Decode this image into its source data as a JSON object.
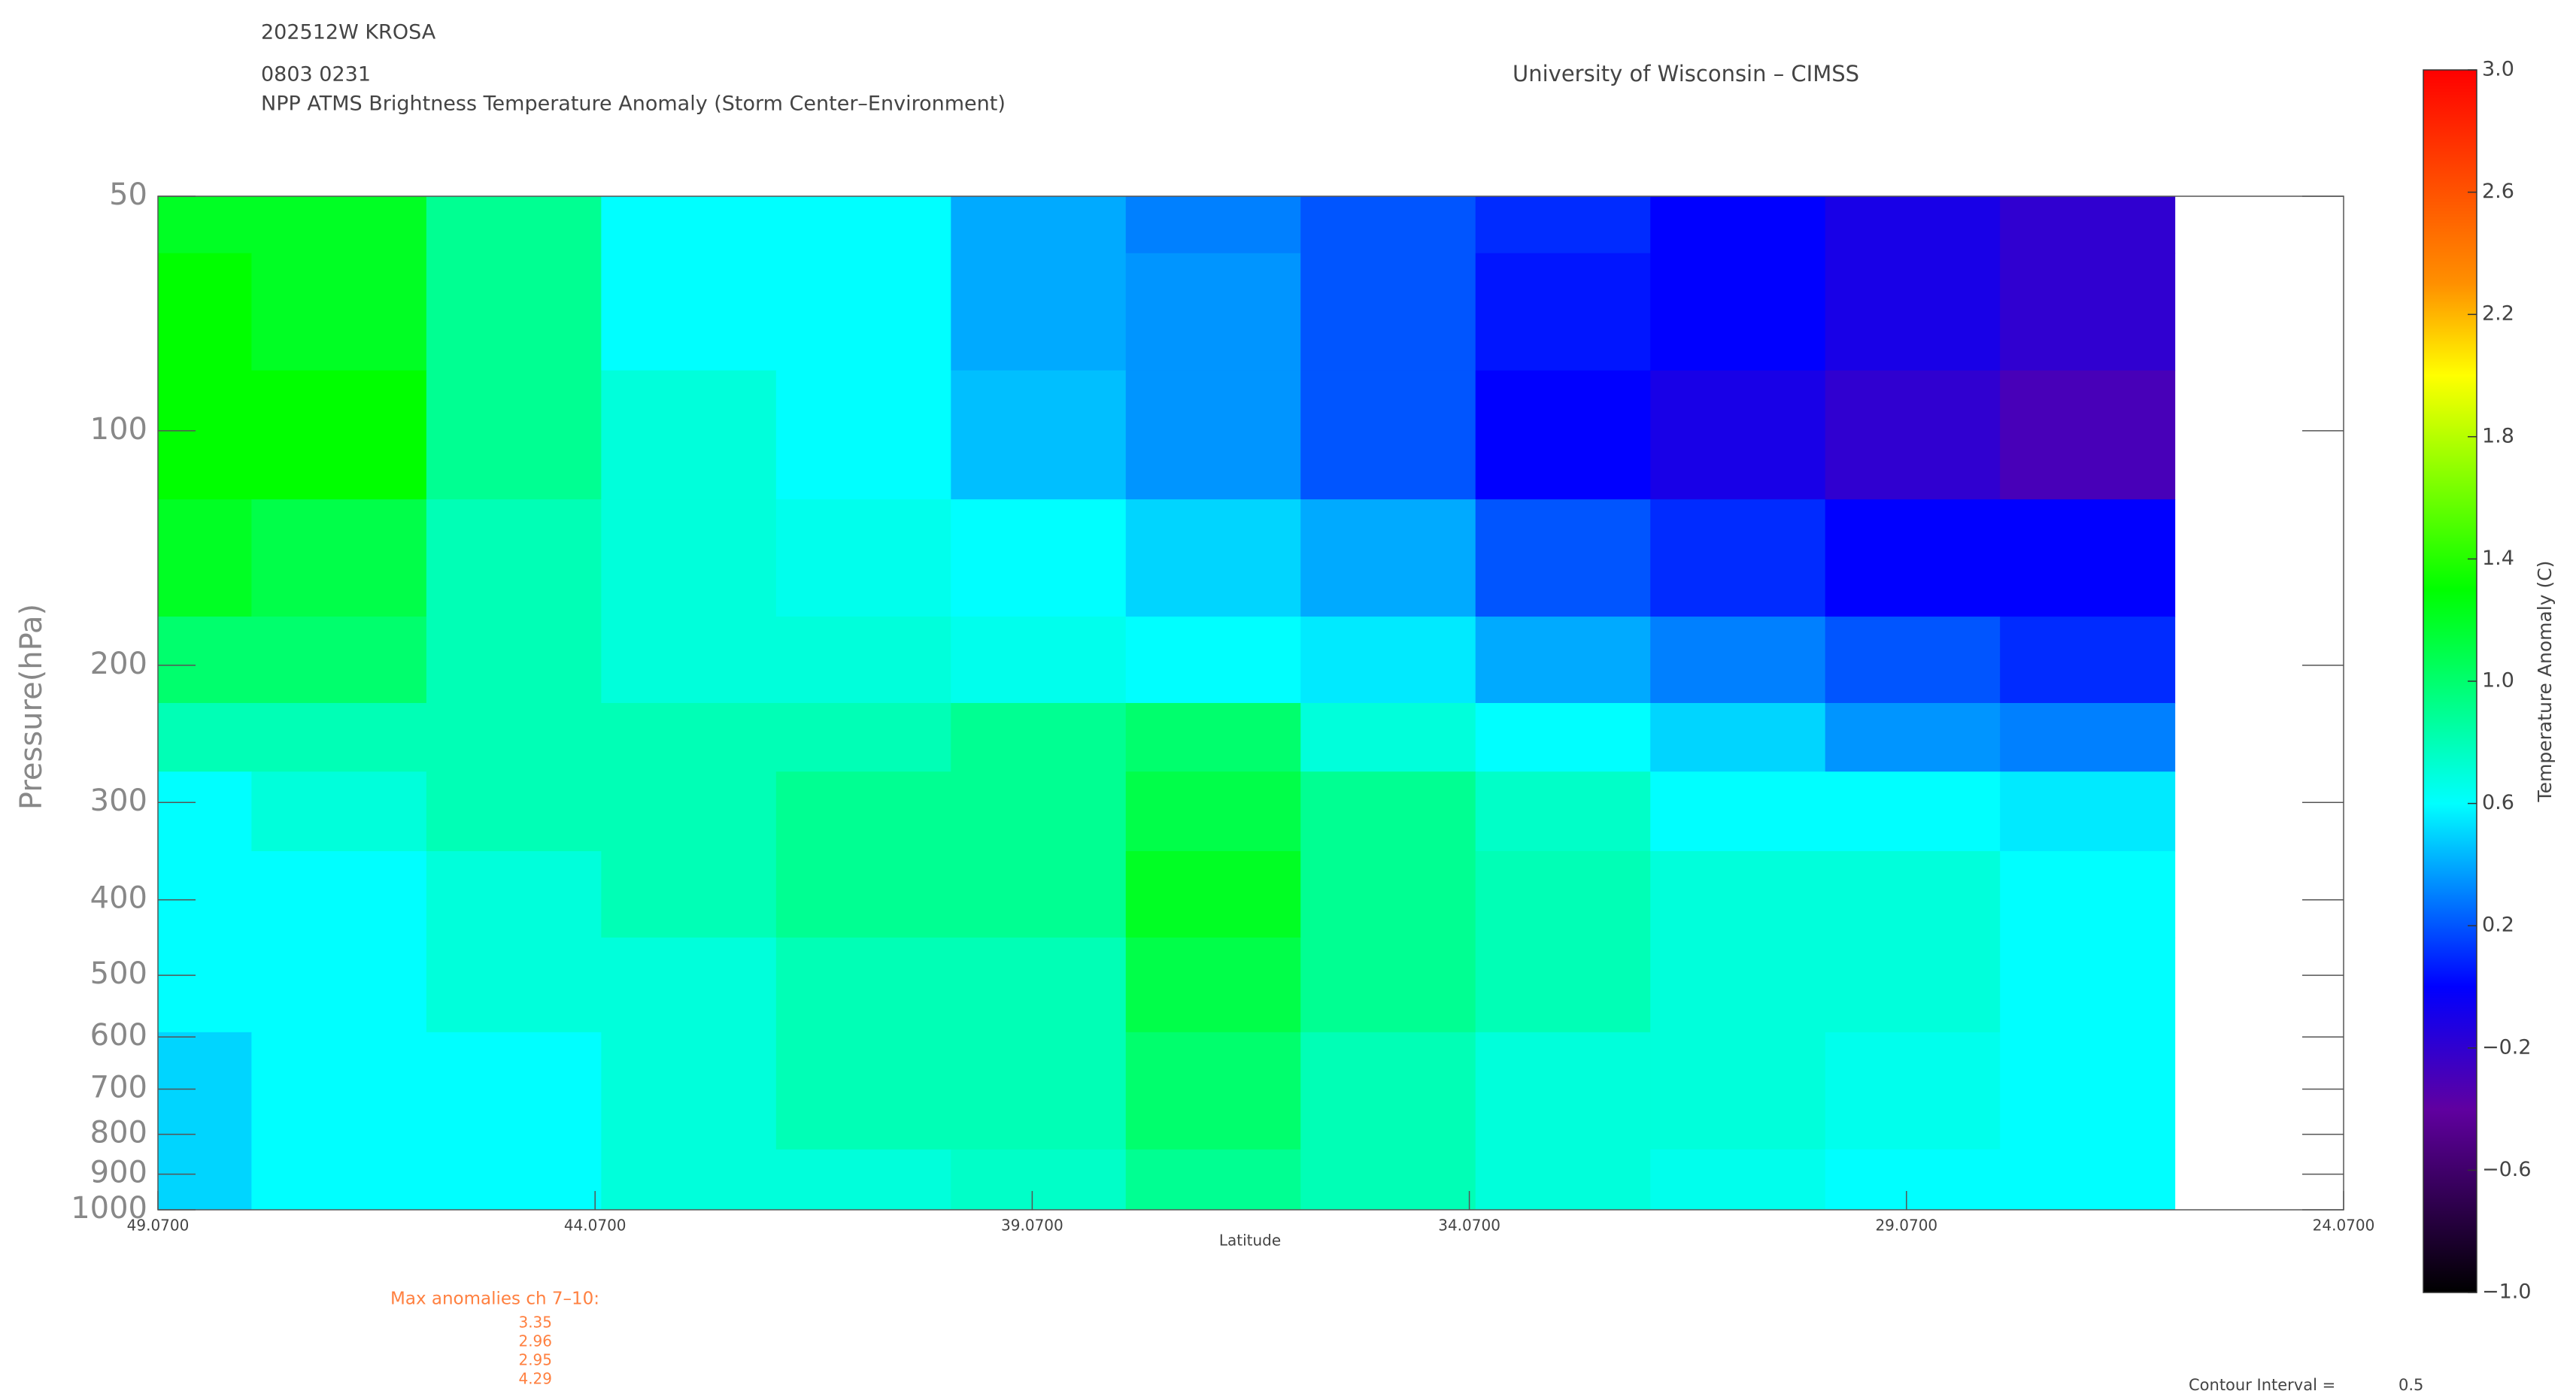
{
  "chart_data": {
    "type": "heatmap",
    "header_lines": [
      "202512W KROSA",
      "0803 0231",
      "NPP ATMS Brightness Temperature Anomaly (Storm Center–Environment)"
    ],
    "source": "University of Wisconsin – CIMSS",
    "xlabel": "Latitude",
    "ylabel": "Pressure(hPa)",
    "colorbar_label": "Temperature Anomaly (C)",
    "xlim": [
      49.07,
      24.07
    ],
    "xticks": [
      {
        "value": 49.07,
        "label": "49.0700"
      },
      {
        "value": 44.07,
        "label": "44.0700"
      },
      {
        "value": 39.07,
        "label": "39.0700"
      },
      {
        "value": 34.07,
        "label": "34.0700"
      },
      {
        "value": 29.07,
        "label": "29.0700"
      },
      {
        "value": 24.07,
        "label": "24.0700"
      }
    ],
    "ylim": [
      1000,
      50
    ],
    "ylog": true,
    "yticks": [
      50,
      100,
      200,
      300,
      400,
      500,
      600,
      700,
      800,
      900,
      1000
    ],
    "zlim": [
      -1,
      3
    ],
    "zticks": [
      {
        "value": -1,
        "label": "−1.0"
      },
      {
        "value": -0.6,
        "label": "−0.6"
      },
      {
        "value": -0.2,
        "label": "−0.2"
      },
      0.2,
      0.6,
      {
        "value": 1,
        "label": "1.0"
      },
      1.4,
      1.8,
      2.2,
      2.6,
      {
        "value": 3,
        "label": "3.0"
      }
    ],
    "colorscale": [
      {
        "value": -1,
        "color": "#000000"
      },
      {
        "value": -0.4,
        "color": "#6000a0"
      },
      {
        "value": 0,
        "color": "#0000ff"
      },
      {
        "value": 0.6,
        "color": "#00ffff"
      },
      {
        "value": 1.3,
        "color": "#00ff00"
      },
      {
        "value": 2,
        "color": "#ffff00"
      },
      {
        "value": 2.3,
        "color": "#ff9000"
      },
      {
        "value": 3,
        "color": "#ff0000"
      }
    ],
    "x": [
      49,
      47,
      45,
      43,
      41,
      39,
      37,
      35,
      33,
      31,
      29,
      27
    ],
    "levels": [
      50,
      70,
      100,
      150,
      200,
      250,
      300,
      400,
      500,
      700,
      1000
    ],
    "z": [
      [
        1.2,
        1.2,
        0.9,
        0.6,
        0.6,
        0.4,
        0.3,
        0.2,
        0.1,
        0.0,
        -0.1,
        -0.2
      ],
      [
        1.3,
        1.2,
        0.9,
        0.6,
        0.6,
        0.4,
        0.35,
        0.2,
        0.05,
        0.0,
        -0.1,
        -0.2
      ],
      [
        1.3,
        1.3,
        0.9,
        0.7,
        0.6,
        0.45,
        0.35,
        0.2,
        0.0,
        -0.1,
        -0.2,
        -0.3
      ],
      [
        1.2,
        1.1,
        0.8,
        0.7,
        0.65,
        0.6,
        0.5,
        0.4,
        0.2,
        0.1,
        0.0,
        0.0
      ],
      [
        1.0,
        1.0,
        0.8,
        0.7,
        0.7,
        0.65,
        0.6,
        0.55,
        0.4,
        0.3,
        0.2,
        0.1
      ],
      [
        0.8,
        0.8,
        0.8,
        0.8,
        0.8,
        0.9,
        1.0,
        0.7,
        0.6,
        0.5,
        0.35,
        0.3
      ],
      [
        0.6,
        0.7,
        0.8,
        0.8,
        0.9,
        0.9,
        1.1,
        0.9,
        0.75,
        0.6,
        0.6,
        0.55
      ],
      [
        0.6,
        0.6,
        0.7,
        0.8,
        0.9,
        0.9,
        1.2,
        0.9,
        0.8,
        0.7,
        0.7,
        0.6
      ],
      [
        0.6,
        0.6,
        0.7,
        0.7,
        0.8,
        0.8,
        1.1,
        0.9,
        0.8,
        0.7,
        0.7,
        0.6
      ],
      [
        0.5,
        0.6,
        0.6,
        0.7,
        0.8,
        0.8,
        1.0,
        0.8,
        0.7,
        0.7,
        0.65,
        0.6
      ],
      [
        0.5,
        0.6,
        0.6,
        0.7,
        0.7,
        0.75,
        0.9,
        0.8,
        0.7,
        0.65,
        0.6,
        0.6
      ]
    ],
    "max_anomalies_title": "Max anomalies ch 7–10:",
    "max_anomalies": [
      "3.35",
      "2.96",
      "2.95",
      "4.29"
    ],
    "contour_interval_label": "Contour Interval =",
    "contour_interval": "0.5"
  }
}
